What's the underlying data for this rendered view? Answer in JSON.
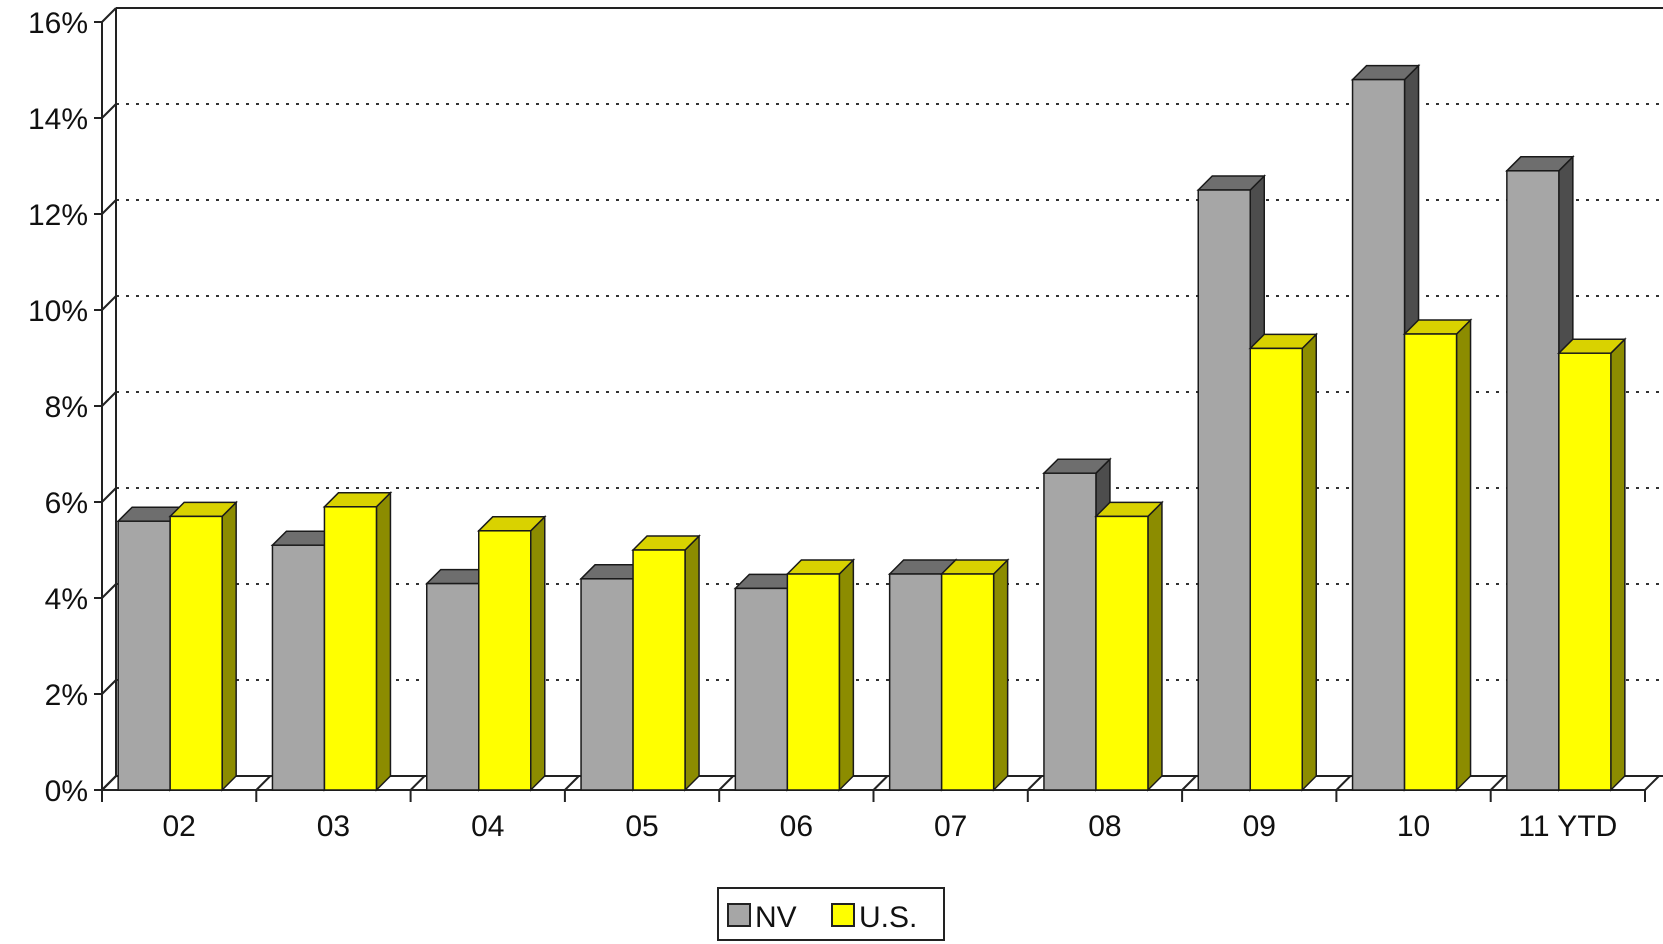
{
  "chart_data": {
    "type": "bar",
    "categories": [
      "02",
      "03",
      "04",
      "05",
      "06",
      "07",
      "08",
      "09",
      "10",
      "11 YTD"
    ],
    "series": [
      {
        "name": "NV",
        "color": "#a6a6a6",
        "values": [
          5.6,
          5.1,
          4.3,
          4.4,
          4.2,
          4.5,
          6.6,
          12.5,
          14.8,
          12.9
        ]
      },
      {
        "name": "U.S.",
        "color": "#ffff00",
        "values": [
          5.7,
          5.9,
          5.4,
          5.0,
          4.5,
          4.5,
          5.7,
          9.2,
          9.5,
          9.1
        ]
      }
    ],
    "ylim": [
      0,
      16
    ],
    "yticks": [
      "0%",
      "2%",
      "4%",
      "6%",
      "8%",
      "10%",
      "12%",
      "14%",
      "16%"
    ],
    "grid": true,
    "bars_3d": true,
    "legend_position": "bottom-center"
  }
}
